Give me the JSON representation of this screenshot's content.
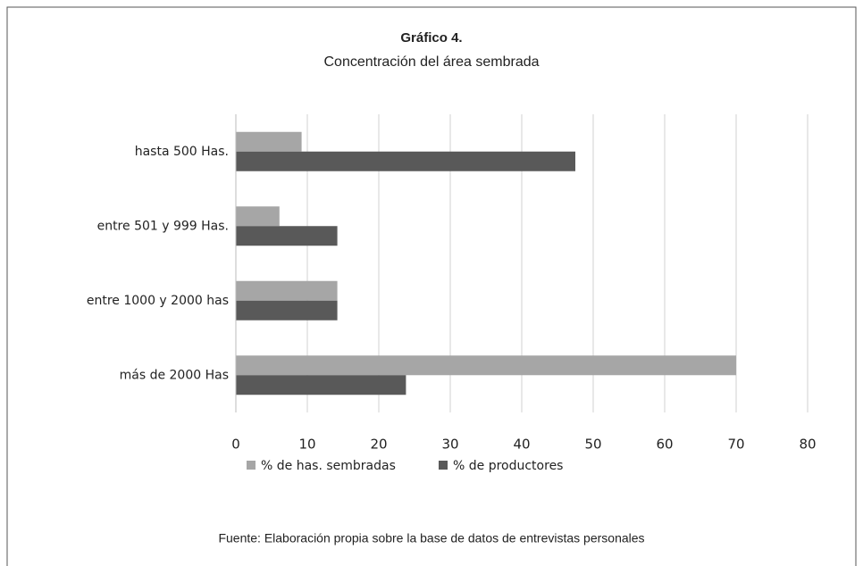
{
  "chart_data": {
    "type": "bar",
    "orientation": "horizontal",
    "title": "Gráfico 4.",
    "subtitle": "Concentración del área sembrada",
    "source": "Fuente: Elaboración propia sobre la base de datos de entrevistas personales",
    "categories": [
      "hasta 500 Has.",
      "entre 501 y 999 Has.",
      "entre 1000 y 2000 has",
      "más de 2000 Has"
    ],
    "series": [
      {
        "name": "% de has. sembradas",
        "color": "#a6a6a6",
        "values": [
          9.2,
          6.1,
          14.2,
          70
        ]
      },
      {
        "name": "% de productores",
        "color": "#595959",
        "values": [
          47.5,
          14.2,
          14.2,
          23.8
        ]
      }
    ],
    "xlim": [
      0,
      80
    ],
    "xticks": [
      0,
      10,
      20,
      30,
      40,
      50,
      60,
      70,
      80
    ],
    "grid": true,
    "legend": "bottom"
  }
}
